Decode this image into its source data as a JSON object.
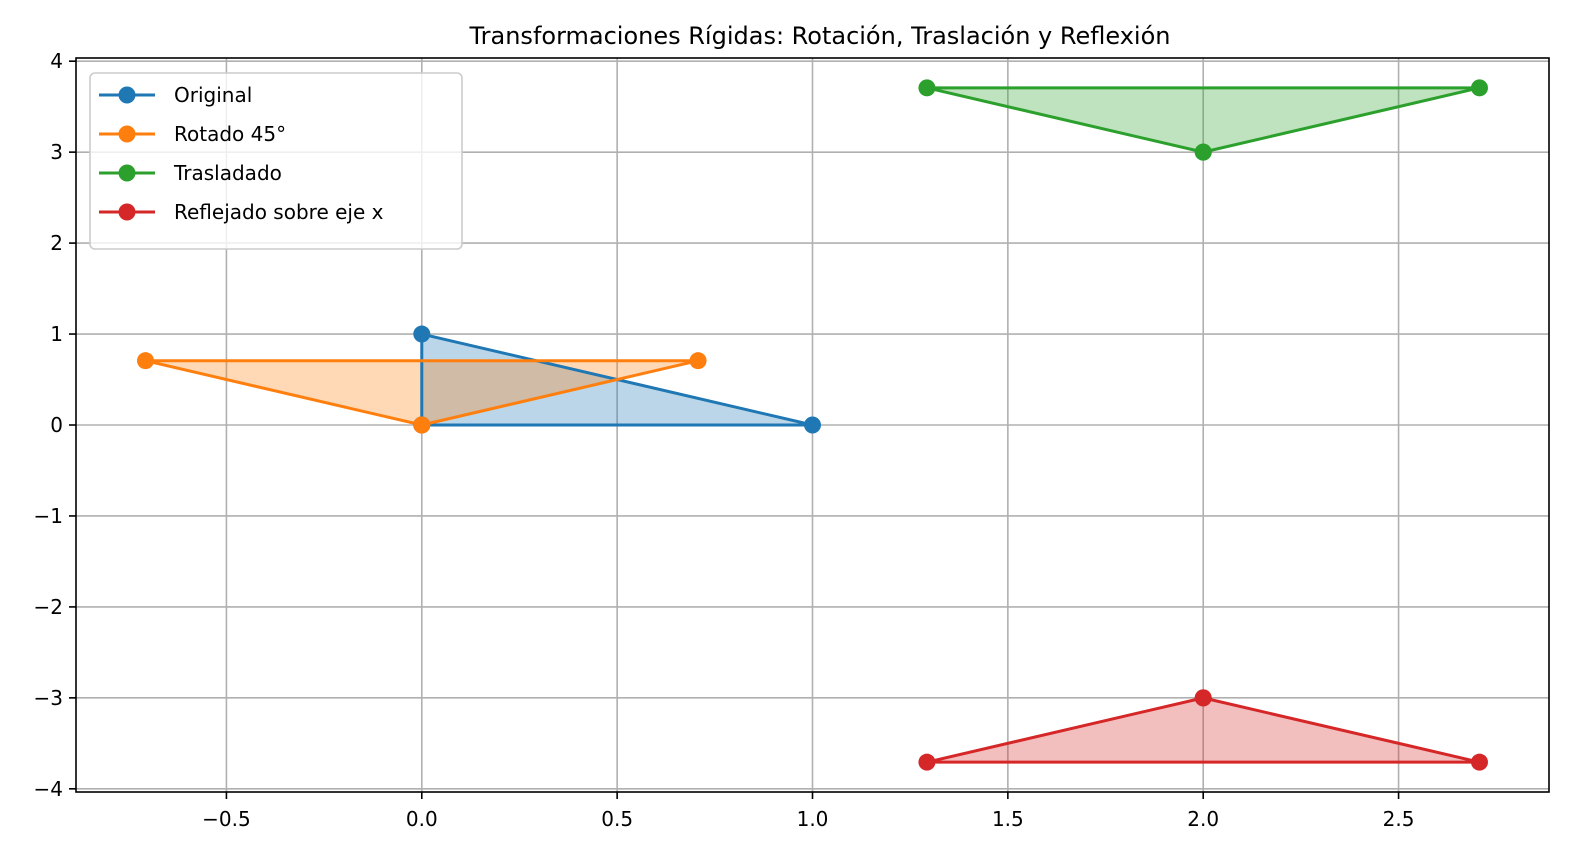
{
  "chart_data": {
    "type": "line",
    "title": "Transformaciones Rígidas: Rotación, Traslación y Reflexión",
    "xlabel": "",
    "ylabel": "",
    "xlim": [
      -0.885,
      2.885
    ],
    "ylim": [
      -4.035,
      4.035
    ],
    "x_ticks": [
      -0.5,
      0.0,
      0.5,
      1.0,
      1.5,
      2.0,
      2.5
    ],
    "x_tick_labels": [
      "−0.5",
      "0.0",
      "0.5",
      "1.0",
      "1.5",
      "2.0",
      "2.5"
    ],
    "y_ticks": [
      -4,
      -3,
      -2,
      -1,
      0,
      1,
      2,
      3,
      4
    ],
    "y_tick_labels": [
      "−4",
      "−3",
      "−2",
      "−1",
      "0",
      "1",
      "2",
      "3",
      "4"
    ],
    "grid": true,
    "legend_position": "upper left",
    "series": [
      {
        "name": "Original",
        "color": "#1f77b4",
        "points": [
          [
            0,
            0
          ],
          [
            1,
            0
          ],
          [
            0,
            1
          ],
          [
            0,
            0
          ]
        ]
      },
      {
        "name": "Rotado 45°",
        "color": "#ff7f0e",
        "points": [
          [
            0,
            0
          ],
          [
            0.7071,
            0.7071
          ],
          [
            -0.7071,
            0.7071
          ],
          [
            0,
            0
          ]
        ]
      },
      {
        "name": "Trasladado",
        "color": "#2ca02c",
        "points": [
          [
            2.0,
            3.0
          ],
          [
            2.7071,
            3.7071
          ],
          [
            1.2929,
            3.7071
          ],
          [
            2.0,
            3.0
          ]
        ]
      },
      {
        "name": "Reflejado sobre eje x",
        "color": "#d62728",
        "points": [
          [
            2.0,
            -3.0
          ],
          [
            2.7071,
            -3.7071
          ],
          [
            1.2929,
            -3.7071
          ],
          [
            2.0,
            -3.0
          ]
        ]
      }
    ]
  }
}
